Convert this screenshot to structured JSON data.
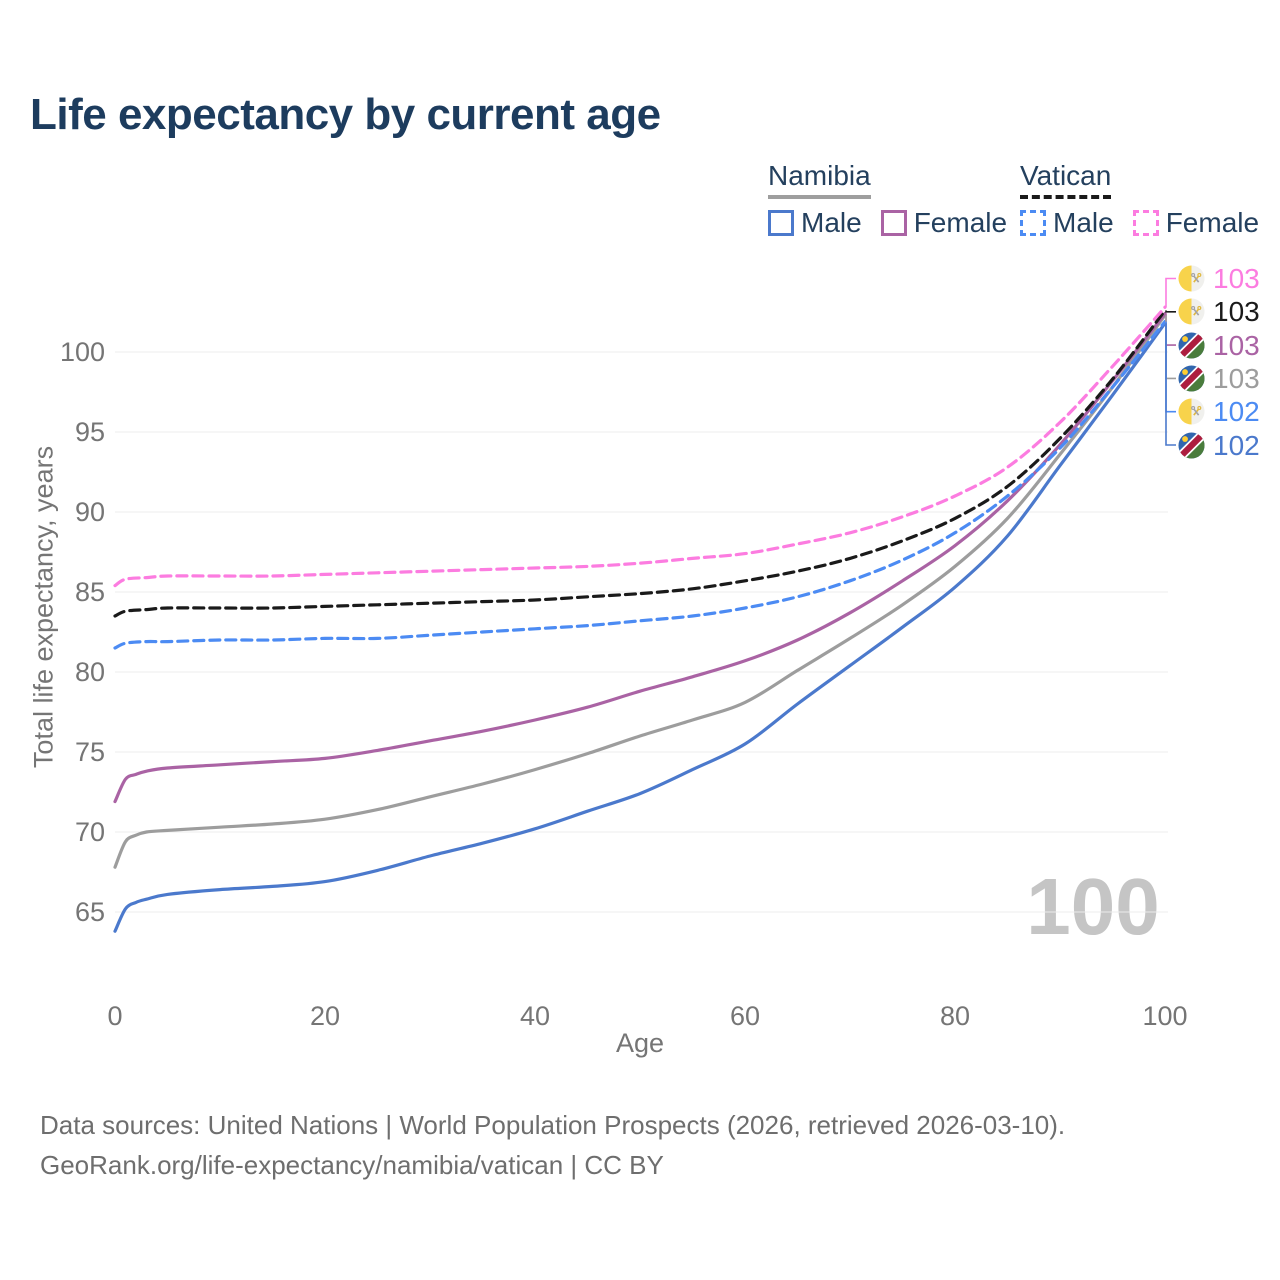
{
  "title": "Life expectancy by current age",
  "legend": {
    "groups": [
      {
        "title": "Namibia",
        "line_style": "solid",
        "underline_color": "#9e9e9e",
        "items": [
          {
            "label": "Male",
            "color": "#4b79cc"
          },
          {
            "label": "Female",
            "color": "#aa63a4"
          }
        ]
      },
      {
        "title": "Vatican",
        "line_style": "dashed",
        "underline_color": "#1a1a1a",
        "items": [
          {
            "label": "Male",
            "color": "#4c8bf3"
          },
          {
            "label": "Female",
            "color": "#fc7ce0"
          }
        ]
      }
    ]
  },
  "watermark": "100",
  "footer": {
    "line1": "Data sources: United Nations | World Population Prospects (2026, retrieved 2026-03-10).",
    "line2": "GeoRank.org/life-expectancy/namibia/vatican | CC BY"
  },
  "chart_data": {
    "type": "line",
    "title": "Life expectancy by current age",
    "xlabel": "Age",
    "ylabel": "Total life expectancy, years",
    "xticks": [
      0,
      20,
      40,
      60,
      80,
      100
    ],
    "yticks": [
      65,
      70,
      75,
      80,
      85,
      90,
      95,
      100
    ],
    "xlim": [
      0,
      100
    ],
    "ylim": [
      62.5,
      104
    ],
    "grid": "horizontal",
    "grid_color": "#ececec",
    "legend_position": "top-right",
    "series": [
      {
        "id": "namibia-male",
        "country": "Namibia",
        "sex": "Male",
        "color": "#4b79cc",
        "dash": false,
        "flag": "namibia",
        "end_label": "102",
        "points": [
          [
            0,
            63.8
          ],
          [
            1,
            65.2
          ],
          [
            2,
            65.6
          ],
          [
            3,
            65.8
          ],
          [
            5,
            66.1
          ],
          [
            10,
            66.4
          ],
          [
            15,
            66.6
          ],
          [
            20,
            66.9
          ],
          [
            25,
            67.6
          ],
          [
            30,
            68.5
          ],
          [
            35,
            69.3
          ],
          [
            40,
            70.2
          ],
          [
            45,
            71.3
          ],
          [
            50,
            72.4
          ],
          [
            55,
            73.9
          ],
          [
            60,
            75.5
          ],
          [
            65,
            78.0
          ],
          [
            70,
            80.4
          ],
          [
            75,
            82.8
          ],
          [
            80,
            85.3
          ],
          [
            85,
            88.5
          ],
          [
            90,
            92.9
          ],
          [
            95,
            97.3
          ],
          [
            100,
            101.8
          ]
        ]
      },
      {
        "id": "namibia-both",
        "country": "Namibia",
        "sex": "Both sexes",
        "color": "#9d9d9d",
        "dash": false,
        "flag": "namibia",
        "end_label": "103",
        "points": [
          [
            0,
            67.8
          ],
          [
            1,
            69.4
          ],
          [
            2,
            69.8
          ],
          [
            3,
            70.0
          ],
          [
            5,
            70.1
          ],
          [
            10,
            70.3
          ],
          [
            15,
            70.5
          ],
          [
            20,
            70.8
          ],
          [
            25,
            71.4
          ],
          [
            30,
            72.2
          ],
          [
            35,
            73.0
          ],
          [
            40,
            73.9
          ],
          [
            45,
            74.9
          ],
          [
            50,
            76.0
          ],
          [
            55,
            77.0
          ],
          [
            60,
            78.1
          ],
          [
            65,
            80.1
          ],
          [
            70,
            82.1
          ],
          [
            75,
            84.2
          ],
          [
            80,
            86.6
          ],
          [
            85,
            89.6
          ],
          [
            90,
            93.6
          ],
          [
            95,
            97.8
          ],
          [
            100,
            102.3
          ]
        ]
      },
      {
        "id": "namibia-female",
        "country": "Namibia",
        "sex": "Female",
        "color": "#aa63a4",
        "dash": false,
        "flag": "namibia",
        "end_label": "103",
        "points": [
          [
            0,
            71.9
          ],
          [
            1,
            73.3
          ],
          [
            2,
            73.6
          ],
          [
            3,
            73.8
          ],
          [
            5,
            74.0
          ],
          [
            10,
            74.2
          ],
          [
            15,
            74.4
          ],
          [
            20,
            74.6
          ],
          [
            25,
            75.1
          ],
          [
            30,
            75.7
          ],
          [
            35,
            76.3
          ],
          [
            40,
            77.0
          ],
          [
            45,
            77.8
          ],
          [
            50,
            78.8
          ],
          [
            55,
            79.7
          ],
          [
            60,
            80.7
          ],
          [
            65,
            82.0
          ],
          [
            70,
            83.7
          ],
          [
            75,
            85.7
          ],
          [
            80,
            87.9
          ],
          [
            85,
            90.7
          ],
          [
            90,
            94.2
          ],
          [
            95,
            98.2
          ],
          [
            100,
            102.4
          ]
        ]
      },
      {
        "id": "vatican-male",
        "country": "Vatican",
        "sex": "Male",
        "color": "#4c8bf3",
        "dash": true,
        "flag": "vatican",
        "end_label": "102",
        "points": [
          [
            0,
            81.5
          ],
          [
            1,
            81.8
          ],
          [
            3,
            81.9
          ],
          [
            5,
            81.9
          ],
          [
            10,
            82.0
          ],
          [
            15,
            82.0
          ],
          [
            20,
            82.1
          ],
          [
            25,
            82.1
          ],
          [
            30,
            82.3
          ],
          [
            35,
            82.5
          ],
          [
            40,
            82.7
          ],
          [
            45,
            82.9
          ],
          [
            50,
            83.2
          ],
          [
            55,
            83.5
          ],
          [
            60,
            84.0
          ],
          [
            65,
            84.7
          ],
          [
            70,
            85.7
          ],
          [
            75,
            87.0
          ],
          [
            80,
            88.7
          ],
          [
            85,
            91.0
          ],
          [
            90,
            94.0
          ],
          [
            95,
            97.8
          ],
          [
            100,
            101.9
          ]
        ]
      },
      {
        "id": "vatican-both",
        "country": "Vatican",
        "sex": "Both sexes",
        "color": "#1a1a1a",
        "dash": true,
        "flag": "vatican",
        "end_label": "103",
        "points": [
          [
            0,
            83.5
          ],
          [
            1,
            83.8
          ],
          [
            3,
            83.9
          ],
          [
            5,
            84.0
          ],
          [
            10,
            84.0
          ],
          [
            15,
            84.0
          ],
          [
            20,
            84.1
          ],
          [
            25,
            84.2
          ],
          [
            30,
            84.3
          ],
          [
            35,
            84.4
          ],
          [
            40,
            84.5
          ],
          [
            45,
            84.7
          ],
          [
            50,
            84.9
          ],
          [
            55,
            85.2
          ],
          [
            60,
            85.7
          ],
          [
            65,
            86.3
          ],
          [
            70,
            87.1
          ],
          [
            75,
            88.2
          ],
          [
            80,
            89.6
          ],
          [
            85,
            91.6
          ],
          [
            90,
            94.6
          ],
          [
            95,
            98.3
          ],
          [
            100,
            102.6
          ]
        ]
      },
      {
        "id": "vatican-female",
        "country": "Vatican",
        "sex": "Female",
        "color": "#fc7ce0",
        "dash": true,
        "flag": "vatican",
        "end_label": "103",
        "points": [
          [
            0,
            85.4
          ],
          [
            1,
            85.8
          ],
          [
            3,
            85.9
          ],
          [
            5,
            86.0
          ],
          [
            10,
            86.0
          ],
          [
            15,
            86.0
          ],
          [
            20,
            86.1
          ],
          [
            25,
            86.2
          ],
          [
            30,
            86.3
          ],
          [
            35,
            86.4
          ],
          [
            40,
            86.5
          ],
          [
            45,
            86.6
          ],
          [
            50,
            86.8
          ],
          [
            55,
            87.1
          ],
          [
            60,
            87.4
          ],
          [
            65,
            88.0
          ],
          [
            70,
            88.7
          ],
          [
            75,
            89.7
          ],
          [
            80,
            91.0
          ],
          [
            85,
            92.8
          ],
          [
            90,
            95.6
          ],
          [
            95,
            99.1
          ],
          [
            100,
            102.8
          ]
        ]
      }
    ]
  }
}
